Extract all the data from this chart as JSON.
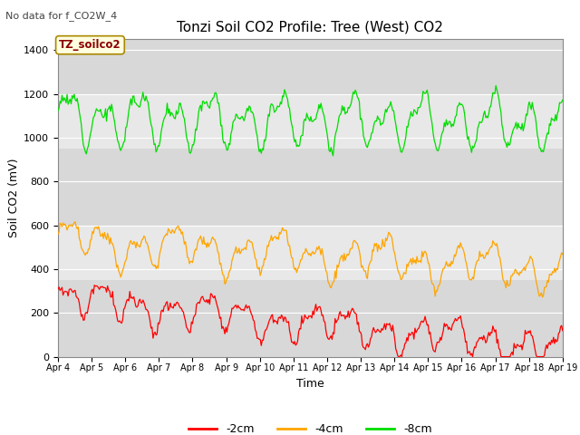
{
  "title": "Tonzi Soil CO2 Profile: Tree (West) CO2",
  "top_left_text": "No data for f_CO2W_4",
  "ylabel": "Soil CO2 (mV)",
  "xlabel": "Time",
  "legend_label": "TZ_soilco2",
  "ylim": [
    0,
    1450
  ],
  "yticks": [
    0,
    200,
    400,
    600,
    800,
    1000,
    1200,
    1400
  ],
  "xticklabels": [
    "Apr 4",
    "Apr 5",
    "Apr 6",
    "Apr 7",
    "Apr 8",
    "Apr 9",
    "Apr 10",
    "Apr 11",
    "Apr 12",
    "Apr 13",
    "Apr 14",
    "Apr 15",
    "Apr 16",
    "Apr 17",
    "Apr 18",
    "Apr 19"
  ],
  "series_labels": [
    "-2cm",
    "-4cm",
    "-8cm"
  ],
  "series_colors": [
    "#ff0000",
    "#ffa500",
    "#00dd00"
  ],
  "band_color": "#e8e8e8",
  "bg_color": "#d8d8d8",
  "band_ranges": [
    [
      950,
      1200
    ],
    [
      350,
      600
    ]
  ]
}
